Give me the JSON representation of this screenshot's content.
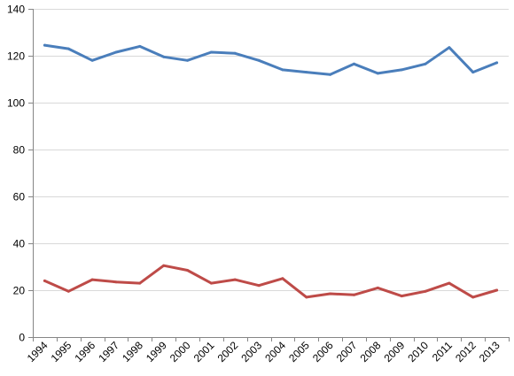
{
  "chart_data": {
    "type": "line",
    "title": "",
    "xlabel": "",
    "ylabel": "",
    "categories": [
      "1994",
      "1995",
      "1996",
      "1997",
      "1998",
      "1999",
      "2000",
      "2001",
      "2002",
      "2003",
      "2004",
      "2005",
      "2006",
      "2007",
      "2008",
      "2009",
      "2010",
      "2011",
      "2012",
      "2013"
    ],
    "ylim": [
      0,
      140
    ],
    "yticks": [
      0,
      20,
      40,
      60,
      80,
      100,
      120,
      140
    ],
    "ytick_labels": [
      "0",
      "20",
      "40",
      "60",
      "80",
      "100",
      "120",
      "140"
    ],
    "grid": true,
    "legend": "none",
    "series": [
      {
        "color": "#4a7ebb",
        "values": [
          124.5,
          123,
          118,
          121.5,
          124,
          119.5,
          118,
          121.5,
          121,
          118,
          114,
          113,
          112,
          116.5,
          112.5,
          114,
          116.5,
          123.5,
          113,
          117
        ]
      },
      {
        "color": "#be4b48",
        "values": [
          24,
          19.5,
          24.5,
          23.5,
          23,
          30.5,
          28.5,
          23,
          24.5,
          22,
          25,
          17,
          18.5,
          18,
          21,
          17.5,
          19.5,
          23,
          17,
          20
        ]
      }
    ]
  }
}
